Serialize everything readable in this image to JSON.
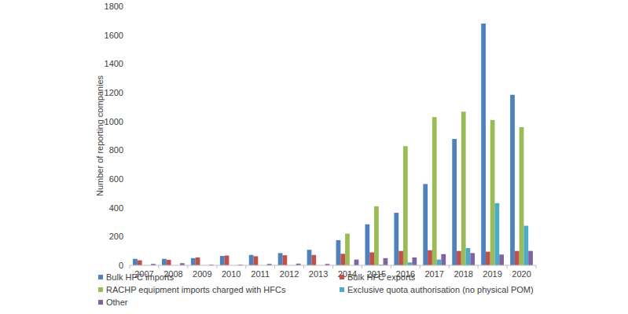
{
  "chart_data": {
    "type": "bar",
    "y_label": "Number of reporting companies",
    "categories": [
      "2007",
      "2008",
      "2009",
      "2010",
      "2011",
      "2012",
      "2013",
      "2014",
      "2015",
      "2016",
      "2017",
      "2018",
      "2019",
      "2020"
    ],
    "series": [
      {
        "name": "Bulk HFC imports",
        "color": "#4f81bd",
        "values": [
          45,
          45,
          50,
          65,
          72,
          85,
          108,
          175,
          285,
          365,
          565,
          878,
          1680,
          1185
        ]
      },
      {
        "name": "Bulk HFC exports",
        "color": "#c0504d",
        "values": [
          35,
          38,
          55,
          68,
          63,
          70,
          72,
          80,
          90,
          100,
          105,
          100,
          95,
          100
        ]
      },
      {
        "name": "RACHP equipment imports charged with HFCs",
        "color": "#9bbb59",
        "values": [
          0,
          0,
          0,
          0,
          0,
          0,
          0,
          220,
          410,
          828,
          1030,
          1068,
          1010,
          960
        ]
      },
      {
        "name": "Exclusive quota authorisation (no physical POM)",
        "color": "#4bacc6",
        "values": [
          0,
          0,
          0,
          0,
          0,
          0,
          0,
          0,
          5,
          20,
          40,
          120,
          432,
          275
        ]
      },
      {
        "name": "Other",
        "color": "#8064a2",
        "values": [
          10,
          15,
          5,
          5,
          10,
          12,
          10,
          40,
          50,
          55,
          78,
          85,
          75,
          100
        ]
      }
    ],
    "ylim": [
      0,
      1800
    ],
    "yticks": [
      0,
      200,
      400,
      600,
      800,
      1000,
      1200,
      1400,
      1600,
      1800
    ],
    "grid": false,
    "legend": "bottom"
  }
}
